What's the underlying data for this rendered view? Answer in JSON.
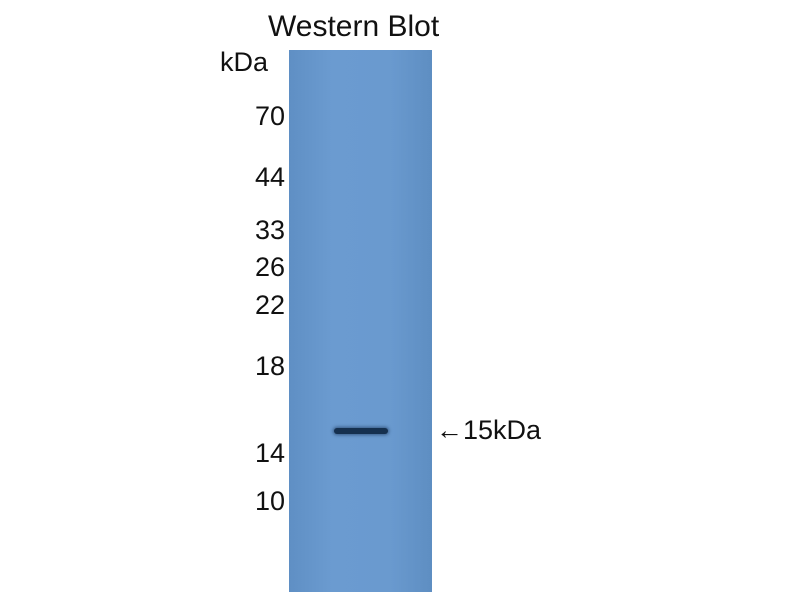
{
  "title": "Western Blot",
  "unit_label": "kDa",
  "markers": [
    "70",
    "44",
    "33",
    "26",
    "22",
    "18",
    "14",
    "10"
  ],
  "band_annotation": {
    "arrow": "←",
    "label": "15kDa"
  },
  "colors": {
    "membrane": "#6a9acf",
    "band": "#15304f"
  }
}
